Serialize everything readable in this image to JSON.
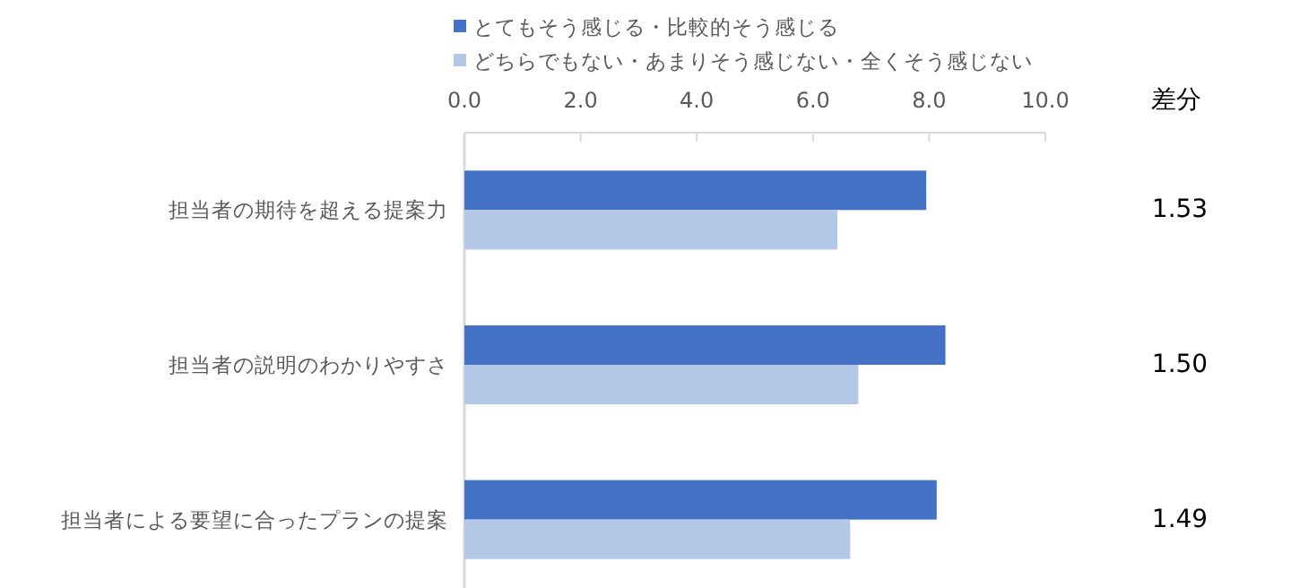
{
  "chart_data": {
    "type": "bar",
    "orientation": "horizontal",
    "categories": [
      "担当者の期待を超える提案力",
      "担当者の説明のわかりやすさ",
      "担当者による要望に合ったプランの提案"
    ],
    "series": [
      {
        "name": "とてもそう感じる・比較的そう感じる",
        "color": "#4472c4",
        "values": [
          7.95,
          8.28,
          8.13
        ]
      },
      {
        "name": "どちらでもない・あまりそう感じない・全くそう感じない",
        "color": "#b4c7e7",
        "values": [
          6.42,
          6.78,
          6.64
        ]
      }
    ],
    "xlim": [
      0,
      10
    ],
    "xticks": [
      {
        "value": 0,
        "label": "0.0"
      },
      {
        "value": 2,
        "label": "2.0"
      },
      {
        "value": 4,
        "label": "4.0"
      },
      {
        "value": 6,
        "label": "6.0"
      },
      {
        "value": 8,
        "label": "8.0"
      },
      {
        "value": 10,
        "label": "10.0"
      }
    ],
    "legend": "top left",
    "annotations": [
      "差分",
      "1.53",
      "1.50",
      "1.49"
    ]
  }
}
